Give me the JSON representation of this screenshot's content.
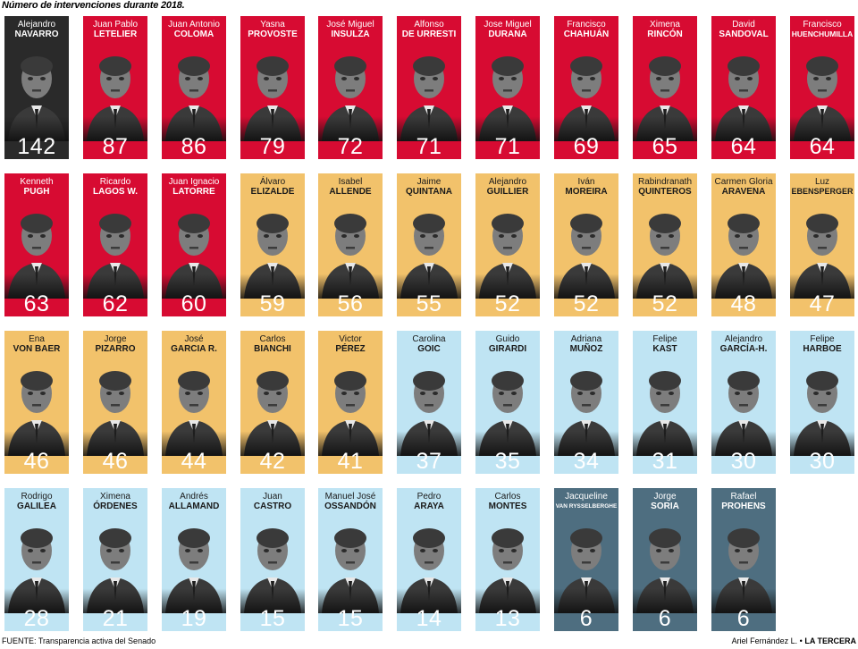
{
  "title": "Número de intervenciones durante 2018.",
  "footer": {
    "source": "FUENTE: Transparencia activa del Senado",
    "credit": "Ariel Fernández L. • ",
    "brand": "LA TERCERA"
  },
  "colors": {
    "red": "#d70b32",
    "orange": "#f2c26b",
    "light_blue": "#bfe4f3",
    "slate": "#4e6e80",
    "black": "#2a2a2a"
  },
  "senators": [
    {
      "first": "Alejandro",
      "last": "NAVARRO",
      "value": 142,
      "color": "black"
    },
    {
      "first": "Juan Pablo",
      "last": "LETELIER",
      "value": 87,
      "color": "red"
    },
    {
      "first": "Juan Antonio",
      "last": "COLOMA",
      "value": 86,
      "color": "red"
    },
    {
      "first": "Yasna",
      "last": "PROVOSTE",
      "value": 79,
      "color": "red"
    },
    {
      "first": "José Miguel",
      "last": "INSULZA",
      "value": 72,
      "color": "red"
    },
    {
      "first": "Alfonso",
      "last": "DE URRESTI",
      "value": 71,
      "color": "red"
    },
    {
      "first": "Jose Miguel",
      "last": "DURANA",
      "value": 71,
      "color": "red"
    },
    {
      "first": "Francisco",
      "last": "CHAHUÁN",
      "value": 69,
      "color": "red"
    },
    {
      "first": "Ximena",
      "last": "RINCÓN",
      "value": 65,
      "color": "red"
    },
    {
      "first": "David",
      "last": "SANDOVAL",
      "value": 64,
      "color": "red"
    },
    {
      "first": "Francisco",
      "last": "HUENCHUMILLA",
      "value": 64,
      "color": "red"
    },
    {
      "first": "Kenneth",
      "last": "PUGH",
      "value": 63,
      "color": "red"
    },
    {
      "first": "Ricardo",
      "last": "LAGOS W.",
      "value": 62,
      "color": "red"
    },
    {
      "first": "Juan Ignacio",
      "last": "LATORRE",
      "value": 60,
      "color": "red"
    },
    {
      "first": "Álvaro",
      "last": "ELIZALDE",
      "value": 59,
      "color": "orange"
    },
    {
      "first": "Isabel",
      "last": "ALLENDE",
      "value": 56,
      "color": "orange"
    },
    {
      "first": "Jaime",
      "last": "QUINTANA",
      "value": 55,
      "color": "orange"
    },
    {
      "first": "Alejandro",
      "last": "GUILLIER",
      "value": 52,
      "color": "orange"
    },
    {
      "first": "Iván",
      "last": "MOREIRA",
      "value": 52,
      "color": "orange"
    },
    {
      "first": "Rabindranath",
      "last": "QUINTEROS",
      "value": 52,
      "color": "orange"
    },
    {
      "first": "Carmen Gloria",
      "last": "ARAVENA",
      "value": 48,
      "color": "orange"
    },
    {
      "first": "Luz",
      "last": "EBENSPERGER",
      "value": 47,
      "color": "orange"
    },
    {
      "first": "Ena",
      "last": "VON BAER",
      "value": 46,
      "color": "orange"
    },
    {
      "first": "Jorge",
      "last": "PIZARRO",
      "value": 46,
      "color": "orange"
    },
    {
      "first": "José",
      "last": "GARCIA R.",
      "value": 44,
      "color": "orange"
    },
    {
      "first": "Carlos",
      "last": "BIANCHI",
      "value": 42,
      "color": "orange"
    },
    {
      "first": "Victor",
      "last": "PÉREZ",
      "value": 41,
      "color": "orange"
    },
    {
      "first": "Carolina",
      "last": "GOIC",
      "value": 37,
      "color": "light_blue"
    },
    {
      "first": "Guido",
      "last": "GIRARDI",
      "value": 35,
      "color": "light_blue"
    },
    {
      "first": "Adriana",
      "last": "MUÑOZ",
      "value": 34,
      "color": "light_blue"
    },
    {
      "first": "Felipe",
      "last": "KAST",
      "value": 31,
      "color": "light_blue"
    },
    {
      "first": "Alejandro",
      "last": "GARCÍA-H.",
      "value": 30,
      "color": "light_blue"
    },
    {
      "first": "Felipe",
      "last": "HARBOE",
      "value": 30,
      "color": "light_blue"
    },
    {
      "first": "Rodrigo",
      "last": "GALILEA",
      "value": 28,
      "color": "light_blue"
    },
    {
      "first": "Ximena",
      "last": "ÓRDENES",
      "value": 21,
      "color": "light_blue"
    },
    {
      "first": "Andrés",
      "last": "ALLAMAND",
      "value": 19,
      "color": "light_blue"
    },
    {
      "first": "Juan",
      "last": "CASTRO",
      "value": 15,
      "color": "light_blue"
    },
    {
      "first": "Manuel José",
      "last": "OSSANDÓN",
      "value": 15,
      "color": "light_blue"
    },
    {
      "first": "Pedro",
      "last": "ARAYA",
      "value": 14,
      "color": "light_blue"
    },
    {
      "first": "Carlos",
      "last": "MONTES",
      "value": 13,
      "color": "light_blue"
    },
    {
      "first": "Jacqueline",
      "last": "VAN RYSSELBERGHE",
      "value": 6,
      "color": "slate"
    },
    {
      "first": "Jorge",
      "last": "SORIA",
      "value": 6,
      "color": "slate"
    },
    {
      "first": "Rafael",
      "last": "PROHENS",
      "value": 6,
      "color": "slate"
    }
  ]
}
